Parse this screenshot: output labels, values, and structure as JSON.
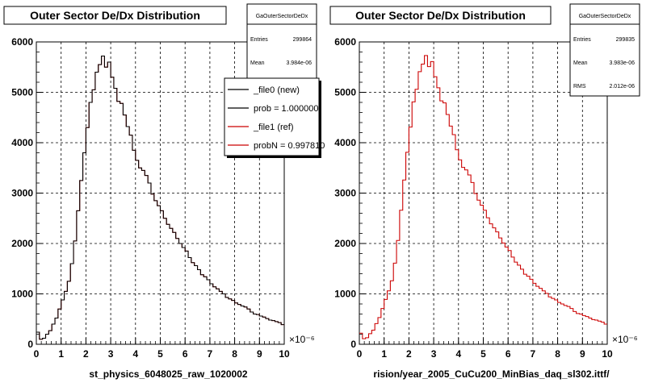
{
  "chart_data": [
    {
      "type": "histogram",
      "title": "Outer Sector De/Dx Distribution",
      "stats": {
        "name": "GaOuterSectorDeDx",
        "rows": [
          {
            "label": "Entries",
            "value": "299864"
          },
          {
            "label": "Mean",
            "value": "3.984e-06"
          }
        ]
      },
      "legend": {
        "placement": "top-right",
        "entries": [
          {
            "label": "_file0 (new)",
            "color": "#000000"
          },
          {
            "label": "prob = 1.000000",
            "color": "#000000"
          },
          {
            "label": "_file1 (ref)",
            "color": "#cc0000"
          },
          {
            "label": "probN = 0.997810",
            "color": "#cc0000"
          }
        ]
      },
      "xlabel": "st_physics_6048025_raw_1020002",
      "x_multiplier": "×10⁻⁶",
      "xlim": [
        0,
        10
      ],
      "ylim": [
        0,
        6000
      ],
      "x_ticks": [
        0,
        1,
        2,
        3,
        4,
        5,
        6,
        7,
        8,
        9,
        10
      ],
      "y_ticks": [
        0,
        1000,
        2000,
        3000,
        4000,
        5000,
        6000
      ],
      "grid": true,
      "series": [
        {
          "name": "_file1 (ref)",
          "color": "#cc0000",
          "bin_edges": [
            0,
            10
          ],
          "values": [
            240,
            100,
            120,
            200,
            270,
            400,
            520,
            700,
            880,
            1050,
            1250,
            1600,
            2050,
            2650,
            3250,
            3800,
            4300,
            4800,
            5050,
            5400,
            5550,
            5720,
            5500,
            5600,
            5300,
            5080,
            4820,
            4780,
            4550,
            4320,
            4150,
            3850,
            3650,
            3500,
            3450,
            3350,
            3200,
            2980,
            2850,
            2750,
            2650,
            2500,
            2380,
            2300,
            2220,
            2100,
            2000,
            1920,
            1850,
            1720,
            1620,
            1560,
            1480,
            1380,
            1340,
            1280,
            1200,
            1140,
            1100,
            1050,
            1000,
            930,
            900,
            870,
            820,
            790,
            760,
            740,
            700,
            640,
            600,
            590,
            560,
            540,
            510,
            480,
            470,
            450,
            430,
            390
          ]
        },
        {
          "name": "_file0 (new)",
          "color": "#000000",
          "bin_edges": [
            0,
            10
          ],
          "values": [
            240,
            100,
            120,
            200,
            270,
            400,
            520,
            700,
            880,
            1050,
            1250,
            1600,
            2050,
            2650,
            3250,
            3800,
            4300,
            4800,
            5050,
            5400,
            5550,
            5720,
            5500,
            5600,
            5300,
            5080,
            4820,
            4780,
            4550,
            4320,
            4150,
            3850,
            3650,
            3500,
            3450,
            3350,
            3200,
            2980,
            2850,
            2750,
            2650,
            2500,
            2380,
            2300,
            2220,
            2100,
            2000,
            1920,
            1850,
            1720,
            1620,
            1560,
            1480,
            1380,
            1340,
            1280,
            1200,
            1140,
            1100,
            1050,
            1000,
            930,
            900,
            870,
            820,
            790,
            760,
            740,
            700,
            640,
            600,
            590,
            560,
            540,
            510,
            480,
            470,
            450,
            430,
            390
          ]
        }
      ]
    },
    {
      "type": "histogram",
      "title": "Outer Sector De/Dx Distribution",
      "stats": {
        "name": "GaOuterSectorDeDx",
        "rows": [
          {
            "label": "Entries",
            "value": "299835"
          },
          {
            "label": "Mean",
            "value": "3.983e-06"
          },
          {
            "label": "RMS",
            "value": "2.012e-06"
          }
        ]
      },
      "xlabel": "rision/year_2005_CuCu200_MinBias_daq_sl302.ittf/",
      "x_multiplier": "×10⁻⁶",
      "xlim": [
        0,
        10
      ],
      "ylim": [
        0,
        6000
      ],
      "x_ticks": [
        0,
        1,
        2,
        3,
        4,
        5,
        6,
        7,
        8,
        9,
        10
      ],
      "y_ticks": [
        0,
        1000,
        2000,
        3000,
        4000,
        5000,
        6000
      ],
      "grid": true,
      "series": [
        {
          "name": "",
          "color": "#cc0000",
          "bin_edges": [
            0,
            10
          ],
          "values": [
            220,
            110,
            130,
            210,
            280,
            410,
            530,
            710,
            890,
            1060,
            1260,
            1610,
            2060,
            2660,
            3260,
            3810,
            4310,
            4810,
            5060,
            5410,
            5560,
            5730,
            5510,
            5610,
            5310,
            5090,
            4830,
            4790,
            4560,
            4330,
            4160,
            3860,
            3660,
            3510,
            3460,
            3360,
            3210,
            2990,
            2860,
            2760,
            2660,
            2510,
            2390,
            2310,
            2230,
            2110,
            2010,
            1930,
            1860,
            1730,
            1630,
            1570,
            1490,
            1390,
            1350,
            1290,
            1210,
            1150,
            1110,
            1060,
            1010,
            940,
            910,
            880,
            830,
            800,
            770,
            750,
            710,
            650,
            610,
            600,
            570,
            550,
            520,
            490,
            480,
            460,
            440,
            400
          ]
        }
      ]
    }
  ]
}
